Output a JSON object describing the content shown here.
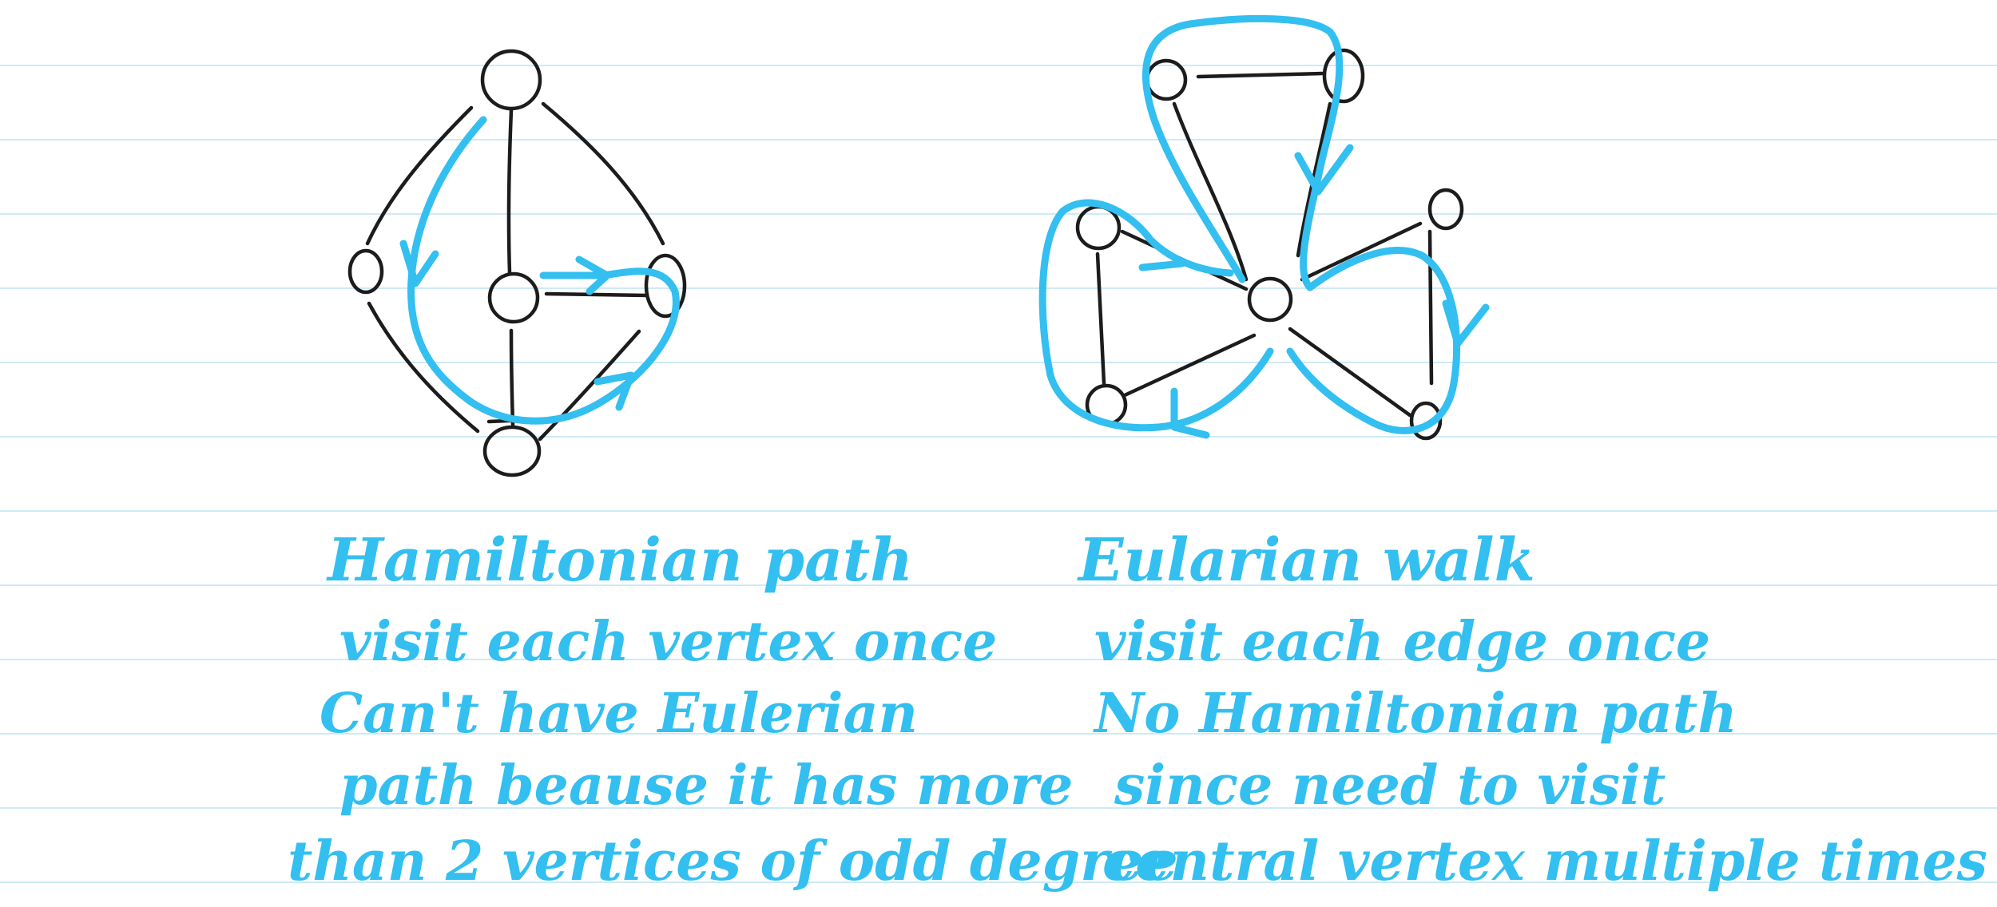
{
  "colors": {
    "ink_black": "#1c1c1c",
    "ink_blue": "#33bff0",
    "ruled_line": "#cdeaf6",
    "paper": "#ffffff"
  },
  "left_note": {
    "title": "Hamiltonian path",
    "lines": [
      "visit each vertex once",
      "Can't have Eulerian",
      "path beause it has more",
      "than 2 vertices of odd degree"
    ]
  },
  "right_note": {
    "title": "Eularian walk",
    "lines": [
      "visit each edge once",
      "No Hamiltonian path",
      "since need to visit",
      "central vertex multiple times"
    ]
  }
}
